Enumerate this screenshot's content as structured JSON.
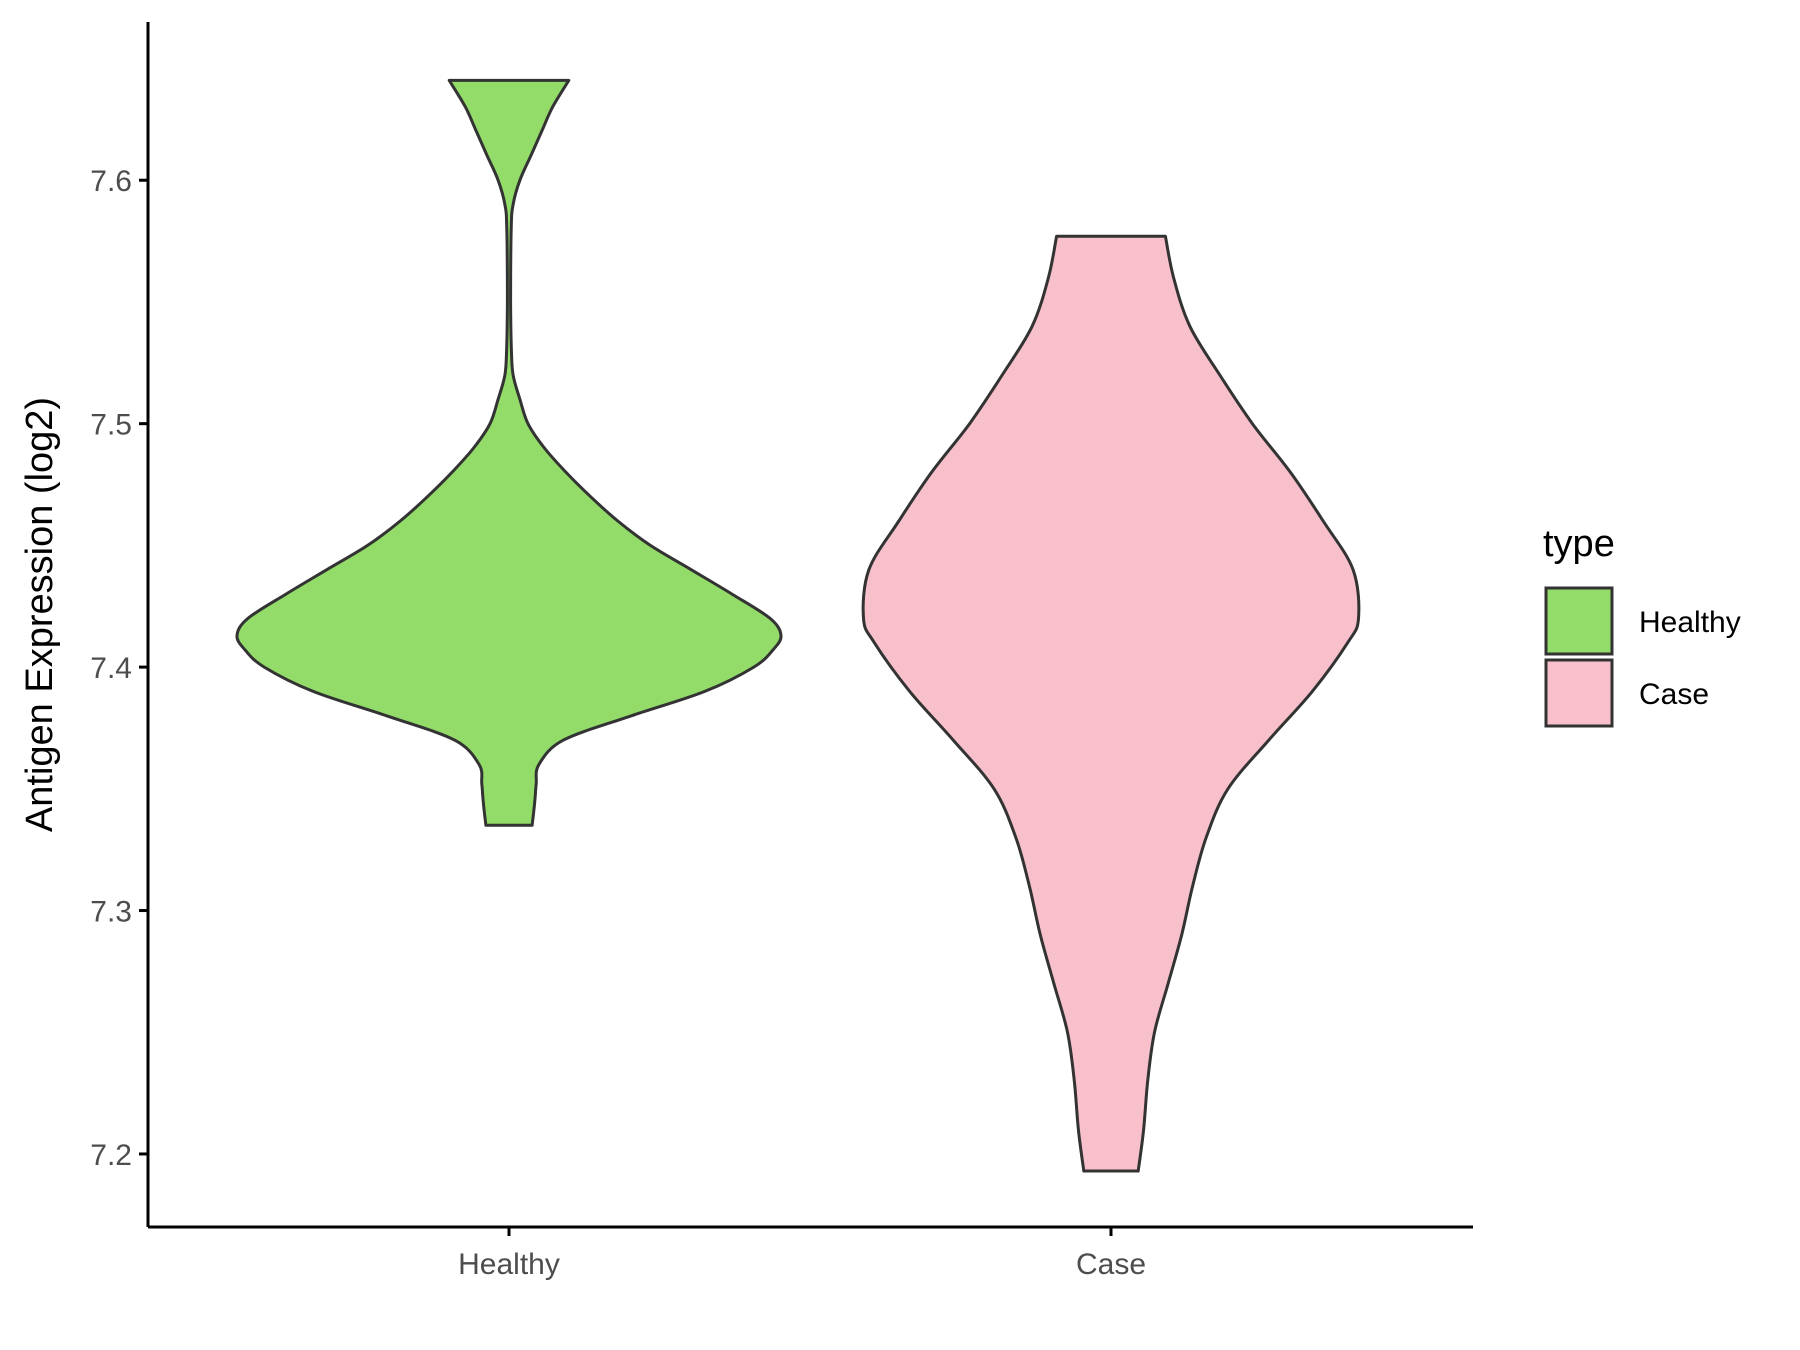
{
  "chart_data": {
    "type": "violin",
    "title": "",
    "xlabel": "",
    "ylabel": "Antigen Expression (log2)",
    "ylim": [
      7.17,
      7.665
    ],
    "yticks": [
      7.2,
      7.3,
      7.4,
      7.5,
      7.6
    ],
    "ytick_labels": [
      "7.2",
      "7.3",
      "7.4",
      "7.5",
      "7.6"
    ],
    "categories": [
      "Healthy",
      "Case"
    ],
    "legend": {
      "title": "type",
      "position": "right",
      "items": [
        {
          "label": "Healthy",
          "color": "#93dc6a"
        },
        {
          "label": "Case",
          "color": "#f7c0cb"
        }
      ]
    },
    "grid": false,
    "series": [
      {
        "category": "Healthy",
        "color": "#93dc6a",
        "min": 7.335,
        "max": 7.641,
        "density": [
          [
            7.335,
            0.085
          ],
          [
            7.345,
            0.095
          ],
          [
            7.352,
            0.1
          ],
          [
            7.36,
            0.11
          ],
          [
            7.37,
            0.2
          ],
          [
            7.38,
            0.45
          ],
          [
            7.39,
            0.72
          ],
          [
            7.4,
            0.9
          ],
          [
            7.407,
            0.97
          ],
          [
            7.413,
            1.0
          ],
          [
            7.42,
            0.96
          ],
          [
            7.43,
            0.82
          ],
          [
            7.44,
            0.67
          ],
          [
            7.45,
            0.52
          ],
          [
            7.46,
            0.4
          ],
          [
            7.47,
            0.3
          ],
          [
            7.48,
            0.21
          ],
          [
            7.49,
            0.13
          ],
          [
            7.5,
            0.07
          ],
          [
            7.51,
            0.04
          ],
          [
            7.52,
            0.015
          ],
          [
            7.53,
            0.009
          ],
          [
            7.55,
            0.006
          ],
          [
            7.58,
            0.008
          ],
          [
            7.59,
            0.015
          ],
          [
            7.6,
            0.04
          ],
          [
            7.61,
            0.08
          ],
          [
            7.62,
            0.12
          ],
          [
            7.63,
            0.16
          ],
          [
            7.641,
            0.22
          ]
        ]
      },
      {
        "category": "Case",
        "color": "#f7c0cb",
        "min": 7.193,
        "max": 7.577,
        "density": [
          [
            7.193,
            0.1
          ],
          [
            7.21,
            0.12
          ],
          [
            7.23,
            0.135
          ],
          [
            7.25,
            0.16
          ],
          [
            7.27,
            0.21
          ],
          [
            7.29,
            0.26
          ],
          [
            7.31,
            0.3
          ],
          [
            7.33,
            0.35
          ],
          [
            7.35,
            0.43
          ],
          [
            7.37,
            0.58
          ],
          [
            7.39,
            0.74
          ],
          [
            7.41,
            0.87
          ],
          [
            7.42,
            0.91
          ],
          [
            7.44,
            0.89
          ],
          [
            7.46,
            0.78
          ],
          [
            7.48,
            0.66
          ],
          [
            7.5,
            0.52
          ],
          [
            7.52,
            0.4
          ],
          [
            7.54,
            0.29
          ],
          [
            7.56,
            0.23
          ],
          [
            7.577,
            0.2
          ]
        ]
      }
    ]
  }
}
